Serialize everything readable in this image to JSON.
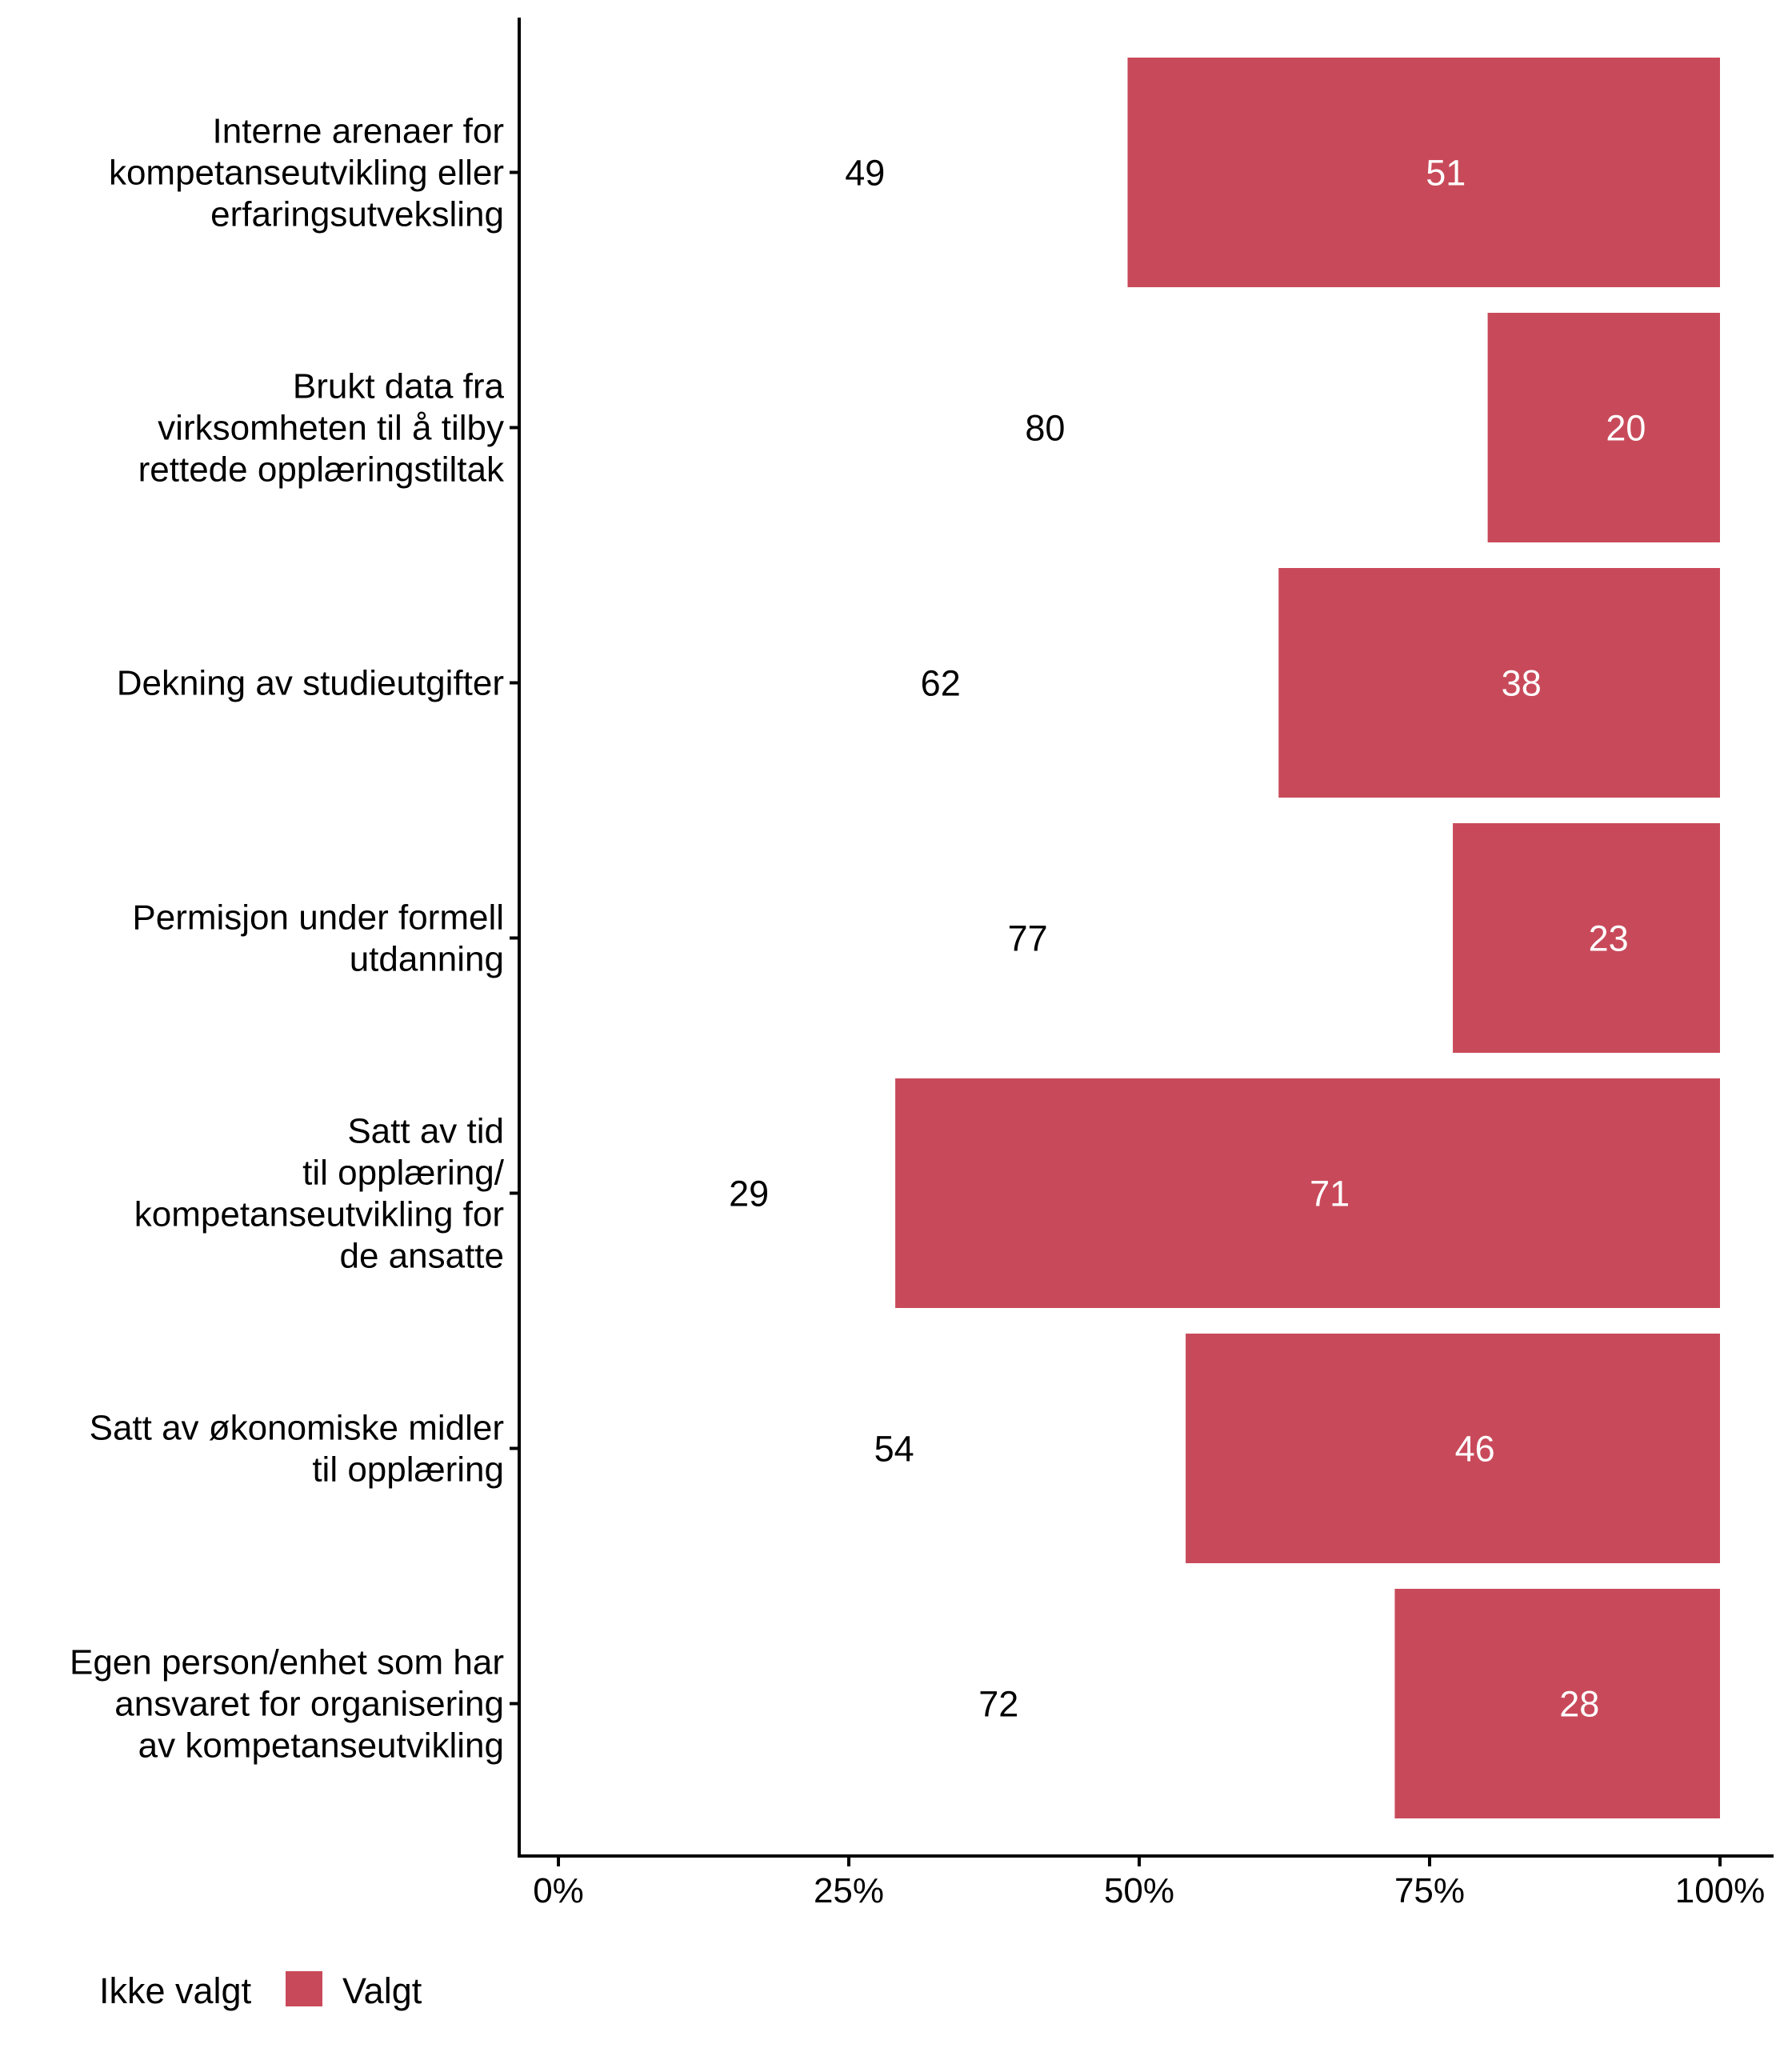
{
  "chart_data": {
    "type": "bar",
    "orientation": "horizontal",
    "stacked": true,
    "normalized_percent": true,
    "title": "",
    "xlabel": "",
    "ylabel": "",
    "xlim": [
      0,
      100
    ],
    "x_ticks": [
      "0%",
      "25%",
      "50%",
      "75%",
      "100%"
    ],
    "x_tick_values": [
      0,
      25,
      50,
      75,
      100
    ],
    "grid": false,
    "legend_position": "bottom-left",
    "categories": [
      [
        "Interne arenaer for",
        "kompetanseutvikling eller",
        "erfaringsutveksling"
      ],
      [
        "Brukt data fra",
        "virksomheten til å tilby",
        "rettede opplæringstiltak"
      ],
      [
        "Dekning av studieutgifter"
      ],
      [
        "Permisjon under formell",
        "utdanning"
      ],
      [
        "Satt av tid",
        "til opplæring/",
        "kompetanseutvikling for",
        "de ansatte"
      ],
      [
        "Satt av økonomiske midler",
        "til opplæring"
      ],
      [
        "Egen person/enhet som har",
        "ansvaret for organisering",
        "av kompetanseutvikling"
      ]
    ],
    "series": [
      {
        "name": "Ikke valgt",
        "color": "#ffffff",
        "label_color": "#000000",
        "values": [
          49,
          80,
          62,
          77,
          29,
          54,
          72
        ]
      },
      {
        "name": "Valgt",
        "color": "#c84a5a",
        "label_color": "#ffffff",
        "values": [
          51,
          20,
          38,
          23,
          71,
          46,
          28
        ]
      }
    ]
  },
  "legend": {
    "items": [
      {
        "label": "Ikke valgt",
        "color": "#ffffff"
      },
      {
        "label": "Valgt",
        "color": "#c84a5a"
      }
    ]
  }
}
